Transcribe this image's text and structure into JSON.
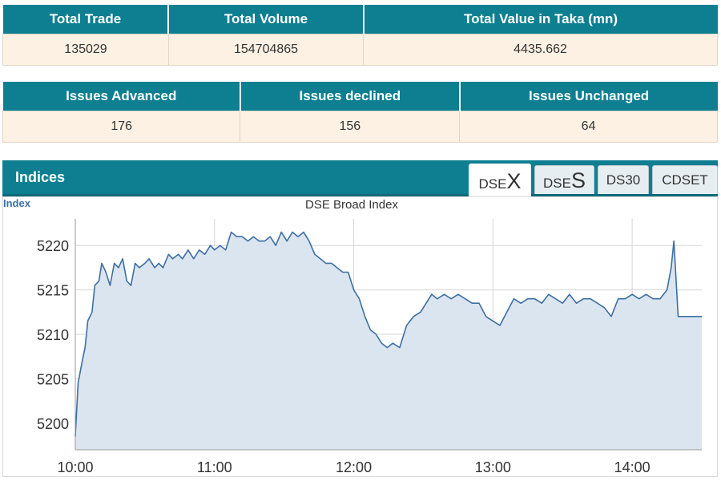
{
  "summary": {
    "headers": [
      "Total Trade",
      "Total Volume",
      "Total Value in Taka (mn)"
    ],
    "values": [
      "135029",
      "154704865",
      "4435.662"
    ]
  },
  "issues": {
    "headers": [
      "Issues Advanced",
      "Issues declined",
      "Issues Unchanged"
    ],
    "values": [
      "176",
      "156",
      "64"
    ]
  },
  "indices": {
    "title": "Indices",
    "tabs": [
      {
        "prefix": "DSE",
        "big": "X",
        "active": true
      },
      {
        "prefix": "DSE",
        "big": "S",
        "active": false
      },
      {
        "prefix": "DS30",
        "big": "",
        "active": false
      },
      {
        "prefix": "CDSET",
        "big": "",
        "active": false
      }
    ]
  },
  "colors": {
    "header_bg": "#0d7f91",
    "cell_bg": "#fdf1e4",
    "line": "#3d6fa3",
    "fill": "#dbe5f0"
  },
  "chart_data": {
    "type": "area",
    "title": "DSE Broad Index",
    "ylabel": "Index",
    "x_unit": "hours (time of day)",
    "x_tick_labels": [
      "10:00",
      "11:00",
      "12:00",
      "13:00",
      "14:00"
    ],
    "x_ticks": [
      10,
      11,
      12,
      13,
      14
    ],
    "xlim": [
      10,
      14.5
    ],
    "y_ticks": [
      5200,
      5205,
      5210,
      5215,
      5220
    ],
    "ylim": [
      5197,
      5223
    ],
    "grid": true,
    "series": [
      {
        "values": [
          [
            10.0,
            5198.5
          ],
          [
            10.02,
            5204.5
          ],
          [
            10.05,
            5207
          ],
          [
            10.07,
            5208.5
          ],
          [
            10.09,
            5211.5
          ],
          [
            10.12,
            5212.5
          ],
          [
            10.14,
            5215.5
          ],
          [
            10.17,
            5216
          ],
          [
            10.19,
            5218
          ],
          [
            10.22,
            5217
          ],
          [
            10.25,
            5215.5
          ],
          [
            10.28,
            5218
          ],
          [
            10.31,
            5217.5
          ],
          [
            10.34,
            5218.5
          ],
          [
            10.37,
            5216
          ],
          [
            10.4,
            5215.5
          ],
          [
            10.43,
            5218
          ],
          [
            10.46,
            5217.5
          ],
          [
            10.5,
            5218
          ],
          [
            10.53,
            5218.5
          ],
          [
            10.57,
            5217.5
          ],
          [
            10.6,
            5218
          ],
          [
            10.63,
            5217.5
          ],
          [
            10.67,
            5219
          ],
          [
            10.7,
            5218.5
          ],
          [
            10.74,
            5219
          ],
          [
            10.77,
            5218.5
          ],
          [
            10.81,
            5219.5
          ],
          [
            10.85,
            5218.5
          ],
          [
            10.89,
            5219.5
          ],
          [
            10.93,
            5219
          ],
          [
            10.97,
            5220
          ],
          [
            11.0,
            5219.5
          ],
          [
            11.04,
            5220
          ],
          [
            11.08,
            5219.5
          ],
          [
            11.12,
            5221.5
          ],
          [
            11.16,
            5221
          ],
          [
            11.2,
            5221
          ],
          [
            11.24,
            5220.5
          ],
          [
            11.28,
            5221
          ],
          [
            11.32,
            5220.5
          ],
          [
            11.36,
            5220.5
          ],
          [
            11.4,
            5221
          ],
          [
            11.44,
            5220
          ],
          [
            11.48,
            5221.5
          ],
          [
            11.52,
            5220.5
          ],
          [
            11.56,
            5221.5
          ],
          [
            11.6,
            5221
          ],
          [
            11.64,
            5221.5
          ],
          [
            11.68,
            5220.5
          ],
          [
            11.72,
            5219
          ],
          [
            11.76,
            5218.5
          ],
          [
            11.8,
            5218
          ],
          [
            11.84,
            5218
          ],
          [
            11.88,
            5217.5
          ],
          [
            11.92,
            5217
          ],
          [
            11.96,
            5217
          ],
          [
            12.0,
            5215
          ],
          [
            12.04,
            5214
          ],
          [
            12.08,
            5212
          ],
          [
            12.12,
            5210.5
          ],
          [
            12.16,
            5210
          ],
          [
            12.2,
            5209
          ],
          [
            12.24,
            5208.5
          ],
          [
            12.28,
            5209
          ],
          [
            12.33,
            5208.5
          ],
          [
            12.38,
            5211
          ],
          [
            12.43,
            5212
          ],
          [
            12.48,
            5212.5
          ],
          [
            12.52,
            5213.5
          ],
          [
            12.56,
            5214.5
          ],
          [
            12.6,
            5214
          ],
          [
            12.65,
            5214.5
          ],
          [
            12.7,
            5214
          ],
          [
            12.75,
            5214.5
          ],
          [
            12.8,
            5214
          ],
          [
            12.85,
            5213.5
          ],
          [
            12.9,
            5213.5
          ],
          [
            12.95,
            5212
          ],
          [
            13.0,
            5211.5
          ],
          [
            13.05,
            5211
          ],
          [
            13.1,
            5212.5
          ],
          [
            13.15,
            5214
          ],
          [
            13.2,
            5213.5
          ],
          [
            13.25,
            5214
          ],
          [
            13.3,
            5214
          ],
          [
            13.35,
            5213.5
          ],
          [
            13.4,
            5214.5
          ],
          [
            13.45,
            5214
          ],
          [
            13.5,
            5213.5
          ],
          [
            13.55,
            5214.5
          ],
          [
            13.6,
            5213.5
          ],
          [
            13.65,
            5214
          ],
          [
            13.7,
            5214
          ],
          [
            13.75,
            5213.5
          ],
          [
            13.8,
            5213
          ],
          [
            13.85,
            5212
          ],
          [
            13.9,
            5214
          ],
          [
            13.95,
            5214
          ],
          [
            14.0,
            5214.5
          ],
          [
            14.05,
            5214
          ],
          [
            14.1,
            5214.5
          ],
          [
            14.15,
            5214
          ],
          [
            14.2,
            5214
          ],
          [
            14.25,
            5215
          ],
          [
            14.28,
            5217.5
          ],
          [
            14.3,
            5220.5
          ],
          [
            14.33,
            5212
          ],
          [
            14.4,
            5212
          ],
          [
            14.5,
            5212
          ]
        ]
      }
    ]
  }
}
